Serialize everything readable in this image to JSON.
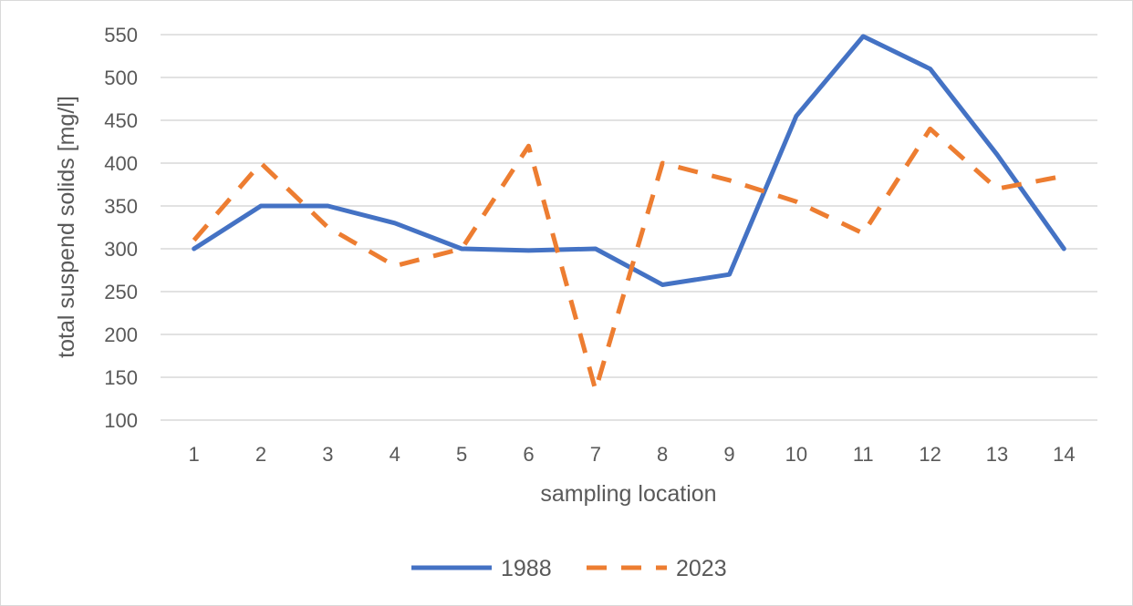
{
  "chart_data": {
    "type": "line",
    "categories": [
      "1",
      "2",
      "3",
      "4",
      "5",
      "6",
      "7",
      "8",
      "9",
      "10",
      "11",
      "12",
      "13",
      "14"
    ],
    "series": [
      {
        "name": "1988",
        "values": [
          300,
          350,
          350,
          330,
          300,
          298,
          300,
          258,
          270,
          455,
          548,
          510,
          410,
          300
        ],
        "color": "#4472C4",
        "style": "solid"
      },
      {
        "name": "2023",
        "values": [
          310,
          400,
          325,
          280,
          300,
          420,
          135,
          400,
          380,
          355,
          318,
          440,
          370,
          385
        ],
        "color": "#ED7D31",
        "style": "dashed"
      }
    ],
    "xlabel": "sampling location",
    "ylabel": "total suspend solids [mg/l]",
    "ylim": [
      100,
      550
    ],
    "yticks": [
      "100",
      "150",
      "200",
      "250",
      "300",
      "350",
      "400",
      "450",
      "500",
      "550"
    ],
    "grid": true,
    "legend_position": "bottom"
  }
}
